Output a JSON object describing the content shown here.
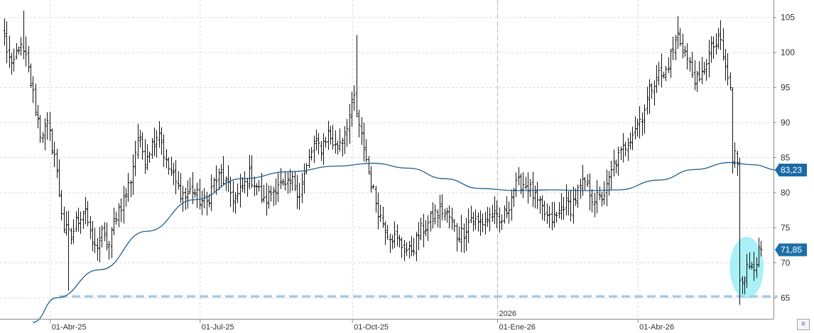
{
  "chart_data": {
    "type": "candlestick-ohlc",
    "title": "",
    "xlabel": "",
    "ylabel": "",
    "ylim": [
      62,
      107.5
    ],
    "y_ticks": [
      65,
      70,
      75,
      80,
      85,
      90,
      95,
      100,
      105
    ],
    "x_ticks": [
      {
        "label": "01-Abr-25",
        "index": 22
      },
      {
        "label": "01-Jul-25",
        "index": 85
      },
      {
        "label": "01-Oct-25",
        "index": 149
      },
      {
        "label": "01-Ene-26",
        "index": 210
      },
      {
        "label": "01-Abr-26",
        "index": 269
      }
    ],
    "year_marker": {
      "label": "2026",
      "index": 210
    },
    "grid": true,
    "colors": {
      "bars": "#111111",
      "moving_average": "#1f5e8e",
      "support_line": "#a9cbe8",
      "highlight": "#9aeef5",
      "ma_label_bg": "#1a6aa6",
      "price_label_bg": "#1d6fa8",
      "grid": "#d8d8d8"
    },
    "support_level": {
      "value": 65.2,
      "start_index": 23,
      "end_index": 325
    },
    "highlight_ellipse": {
      "center_index": 312,
      "center_value": 69.3,
      "span_bars": 13,
      "value_radius": 4.4
    },
    "labels": {
      "moving_average": "83,23",
      "last_price": "71,85"
    },
    "moving_average": {
      "name": "",
      "knots": [
        [
          12,
          61.5
        ],
        [
          22,
          65.0
        ],
        [
          40,
          69.0
        ],
        [
          60,
          74.5
        ],
        [
          80,
          79.0
        ],
        [
          100,
          82.0
        ],
        [
          120,
          83.0
        ],
        [
          140,
          83.8
        ],
        [
          155,
          84.2
        ],
        [
          170,
          83.5
        ],
        [
          185,
          82.0
        ],
        [
          200,
          80.6
        ],
        [
          215,
          80.3
        ],
        [
          230,
          80.4
        ],
        [
          245,
          80.3
        ],
        [
          258,
          80.4
        ],
        [
          275,
          81.8
        ],
        [
          290,
          83.3
        ],
        [
          305,
          84.3
        ],
        [
          314,
          84.0
        ],
        [
          326,
          83.2
        ]
      ]
    },
    "ohlc_anchors": [
      [
        0,
        102.0
      ],
      [
        3,
        97.5
      ],
      [
        6,
        101.0
      ],
      [
        9,
        99.0
      ],
      [
        12,
        94.0
      ],
      [
        15,
        88.5
      ],
      [
        18,
        89.5
      ],
      [
        21,
        85.5
      ],
      [
        23,
        80.0
      ],
      [
        25,
        75.0
      ],
      [
        28,
        73.5
      ],
      [
        30,
        75.8
      ],
      [
        34,
        78.0
      ],
      [
        36,
        73.5
      ],
      [
        38,
        72.0
      ],
      [
        41,
        74.0
      ],
      [
        44,
        72.5
      ],
      [
        47,
        77.0
      ],
      [
        50,
        79.0
      ],
      [
        53,
        82.0
      ],
      [
        56,
        88.0
      ],
      [
        59,
        85.0
      ],
      [
        62,
        87.0
      ],
      [
        65,
        89.0
      ],
      [
        68,
        84.0
      ],
      [
        70,
        83.0
      ],
      [
        73,
        80.5
      ],
      [
        76,
        79.5
      ],
      [
        79,
        80.5
      ],
      [
        82,
        79.0
      ],
      [
        85,
        78.5
      ],
      [
        88,
        81.5
      ],
      [
        91,
        82.5
      ],
      [
        94,
        80.5
      ],
      [
        97,
        79.0
      ],
      [
        100,
        80.5
      ],
      [
        103,
        82.5
      ],
      [
        106,
        81.0
      ],
      [
        109,
        78.5
      ],
      [
        112,
        80.0
      ],
      [
        115,
        81.5
      ],
      [
        118,
        80.5
      ],
      [
        121,
        81.5
      ],
      [
        124,
        80.0
      ],
      [
        127,
        83.5
      ],
      [
        130,
        87.0
      ],
      [
        133,
        86.5
      ],
      [
        136,
        88.5
      ],
      [
        139,
        86.5
      ],
      [
        142,
        88.0
      ],
      [
        145,
        91.0
      ],
      [
        147,
        93.5
      ],
      [
        149,
        89.0
      ],
      [
        151,
        86.5
      ],
      [
        153,
        83.0
      ],
      [
        155,
        80.0
      ],
      [
        158,
        76.5
      ],
      [
        161,
        74.5
      ],
      [
        164,
        73.5
      ],
      [
        167,
        72.5
      ],
      [
        170,
        71.5
      ],
      [
        172,
        72.5
      ],
      [
        175,
        74.5
      ],
      [
        178,
        75.5
      ],
      [
        181,
        77.0
      ],
      [
        184,
        77.5
      ],
      [
        187,
        76.5
      ],
      [
        190,
        74.0
      ],
      [
        193,
        74.5
      ],
      [
        196,
        76.5
      ],
      [
        199,
        75.5
      ],
      [
        202,
        76.0
      ],
      [
        205,
        77.0
      ],
      [
        208,
        75.5
      ],
      [
        211,
        77.5
      ],
      [
        214,
        80.5
      ],
      [
        217,
        81.5
      ],
      [
        220,
        81.0
      ],
      [
        223,
        79.0
      ],
      [
        226,
        77.5
      ],
      [
        229,
        76.0
      ],
      [
        232,
        76.5
      ],
      [
        235,
        78.5
      ],
      [
        238,
        78.0
      ],
      [
        241,
        80.0
      ],
      [
        244,
        81.5
      ],
      [
        247,
        79.5
      ],
      [
        250,
        79.0
      ],
      [
        253,
        80.5
      ],
      [
        256,
        84.0
      ],
      [
        259,
        85.5
      ],
      [
        262,
        87.5
      ],
      [
        265,
        89.5
      ],
      [
        268,
        91.0
      ],
      [
        271,
        94.5
      ],
      [
        274,
        97.0
      ],
      [
        277,
        96.5
      ],
      [
        280,
        99.5
      ],
      [
        283,
        102.5
      ],
      [
        286,
        100.0
      ],
      [
        289,
        97.0
      ],
      [
        292,
        95.5
      ],
      [
        295,
        99.0
      ],
      [
        298,
        101.0
      ],
      [
        301,
        101.5
      ],
      [
        303,
        97.5
      ],
      [
        305,
        95.0
      ],
      [
        306,
        84.0
      ],
      [
        307,
        85.5
      ],
      [
        308,
        84.5
      ],
      [
        309,
        68.0
      ],
      [
        311,
        68.5
      ],
      [
        313,
        69.5
      ],
      [
        315,
        70.0
      ],
      [
        317,
        71.2
      ],
      [
        318,
        71.85
      ]
    ],
    "n_bars": 319
  },
  "ui": {
    "corner_button_icon": "collapse-arrows-icon"
  }
}
